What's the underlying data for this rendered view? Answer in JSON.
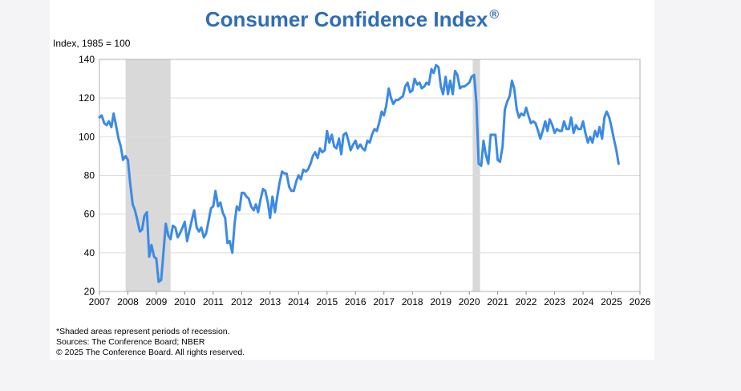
{
  "chart_data": {
    "type": "line",
    "title": "Consumer Confidence Index",
    "title_mark": "®",
    "ylabel": "Index, 1985 = 100",
    "ylim": [
      20,
      140
    ],
    "yticks": [
      "20",
      "40",
      "60",
      "80",
      "100",
      "120",
      "140"
    ],
    "xlim": [
      2007,
      2026
    ],
    "xticks": [
      "2007",
      "2008",
      "2009",
      "2010",
      "2011",
      "2012",
      "2013",
      "2014",
      "2015",
      "2016",
      "2017",
      "2018",
      "2019",
      "2020",
      "2021",
      "2022",
      "2023",
      "2024",
      "2025",
      "2026"
    ],
    "grid": "horizontal",
    "recessions": [
      [
        2007.92,
        2009.5
      ],
      [
        2020.12,
        2020.38
      ]
    ],
    "line_color": "#3b8ae6",
    "recession_color": "#d9d9d9",
    "series": [
      {
        "x": [
          2007.0,
          2007.08,
          2007.17,
          2007.25,
          2007.33,
          2007.42,
          2007.5,
          2007.58,
          2007.67,
          2007.75,
          2007.83,
          2007.92,
          2008.0,
          2008.08,
          2008.17,
          2008.25,
          2008.33,
          2008.42,
          2008.5,
          2008.58,
          2008.67,
          2008.75,
          2008.83,
          2008.92,
          2009.0,
          2009.08,
          2009.17,
          2009.25,
          2009.33,
          2009.42,
          2009.5,
          2009.58,
          2009.67,
          2009.75,
          2009.83,
          2009.92,
          2010.0,
          2010.08,
          2010.17,
          2010.25,
          2010.33,
          2010.42,
          2010.5,
          2010.58,
          2010.67,
          2010.75,
          2010.83,
          2010.92,
          2011.0,
          2011.08,
          2011.17,
          2011.25,
          2011.33,
          2011.42,
          2011.5,
          2011.58,
          2011.67,
          2011.75,
          2011.83,
          2011.92,
          2012.0,
          2012.08,
          2012.17,
          2012.25,
          2012.33,
          2012.42,
          2012.5,
          2012.58,
          2012.67,
          2012.75,
          2012.83,
          2012.92,
          2013.0,
          2013.08,
          2013.17,
          2013.25,
          2013.33,
          2013.42,
          2013.5,
          2013.58,
          2013.67,
          2013.75,
          2013.83,
          2013.92,
          2014.0,
          2014.08,
          2014.17,
          2014.25,
          2014.33,
          2014.42,
          2014.5,
          2014.58,
          2014.67,
          2014.75,
          2014.83,
          2014.92,
          2015.0,
          2015.08,
          2015.17,
          2015.25,
          2015.33,
          2015.42,
          2015.5,
          2015.58,
          2015.67,
          2015.75,
          2015.83,
          2015.92,
          2016.0,
          2016.08,
          2016.17,
          2016.25,
          2016.33,
          2016.42,
          2016.5,
          2016.58,
          2016.67,
          2016.75,
          2016.83,
          2016.92,
          2017.0,
          2017.08,
          2017.17,
          2017.25,
          2017.33,
          2017.42,
          2017.5,
          2017.58,
          2017.67,
          2017.75,
          2017.83,
          2017.92,
          2018.0,
          2018.08,
          2018.17,
          2018.25,
          2018.33,
          2018.42,
          2018.5,
          2018.58,
          2018.67,
          2018.75,
          2018.83,
          2018.92,
          2019.0,
          2019.08,
          2019.17,
          2019.25,
          2019.33,
          2019.42,
          2019.5,
          2019.58,
          2019.67,
          2019.75,
          2019.83,
          2019.92,
          2020.0,
          2020.08,
          2020.17,
          2020.25,
          2020.33,
          2020.42,
          2020.5,
          2020.58,
          2020.67,
          2020.75,
          2020.83,
          2020.92,
          2021.0,
          2021.08,
          2021.17,
          2021.25,
          2021.33,
          2021.42,
          2021.5,
          2021.58,
          2021.67,
          2021.75,
          2021.83,
          2021.92,
          2022.0,
          2022.08,
          2022.17,
          2022.25,
          2022.33,
          2022.42,
          2022.5,
          2022.58,
          2022.67,
          2022.75,
          2022.83,
          2022.92,
          2023.0,
          2023.08,
          2023.17,
          2023.25,
          2023.33,
          2023.42,
          2023.5,
          2023.58,
          2023.67,
          2023.75,
          2023.83,
          2023.92,
          2024.0,
          2024.08,
          2024.17,
          2024.25,
          2024.33,
          2024.42,
          2024.5,
          2024.58,
          2024.67,
          2024.75,
          2024.83,
          2024.92,
          2025.0,
          2025.08,
          2025.17,
          2025.25
        ],
        "values": [
          110,
          111,
          107,
          106,
          108,
          105,
          112,
          106,
          99,
          95,
          88,
          90,
          88,
          76,
          65,
          62,
          57,
          51,
          52,
          59,
          61,
          38,
          44,
          38,
          37,
          25,
          26,
          40,
          55,
          49,
          47,
          54,
          53,
          48,
          50,
          53,
          56,
          46,
          52,
          57,
          62,
          53,
          51,
          53,
          48,
          50,
          56,
          63,
          64,
          72,
          64,
          66,
          61,
          58,
          45,
          46,
          40,
          55,
          64,
          62,
          71,
          71,
          69,
          68,
          64,
          62,
          65,
          61,
          68,
          73,
          72,
          66,
          58,
          69,
          61,
          69,
          76,
          82,
          81,
          81,
          74,
          72,
          72,
          77,
          80,
          78,
          83,
          82,
          83,
          86,
          90,
          92,
          89,
          94,
          92,
          93,
          103,
          97,
          101,
          95,
          94,
          99,
          91,
          101,
          102,
          98,
          93,
          96,
          98,
          94,
          96,
          94,
          93,
          98,
          97,
          101,
          104,
          103,
          107,
          113,
          111,
          116,
          125,
          120,
          117,
          119,
          119,
          120,
          121,
          126,
          128,
          123,
          124,
          130,
          127,
          128,
          125,
          126,
          128,
          127,
          135,
          133,
          137,
          136,
          126,
          122,
          131,
          122,
          129,
          122,
          134,
          132,
          125,
          126,
          126,
          127,
          128,
          131,
          132,
          118,
          86,
          85,
          98,
          91,
          86,
          101,
          101,
          101,
          88,
          87,
          95,
          114,
          118,
          121,
          129,
          125,
          114,
          110,
          112,
          111,
          115,
          111,
          107,
          108,
          107,
          103,
          99,
          103,
          108,
          103,
          109,
          106,
          102,
          104,
          103,
          103,
          108,
          104,
          104,
          110,
          102,
          106,
          104,
          104,
          108,
          102,
          97,
          100,
          97,
          103,
          100,
          105,
          99,
          110,
          113,
          110,
          105,
          99,
          93,
          86
        ]
      }
    ],
    "notes": [
      "*Shaded areas represent periods of recession.",
      "Sources: The Conference Board;  NBER",
      "© 2025 The Conference Board. All rights reserved."
    ]
  }
}
